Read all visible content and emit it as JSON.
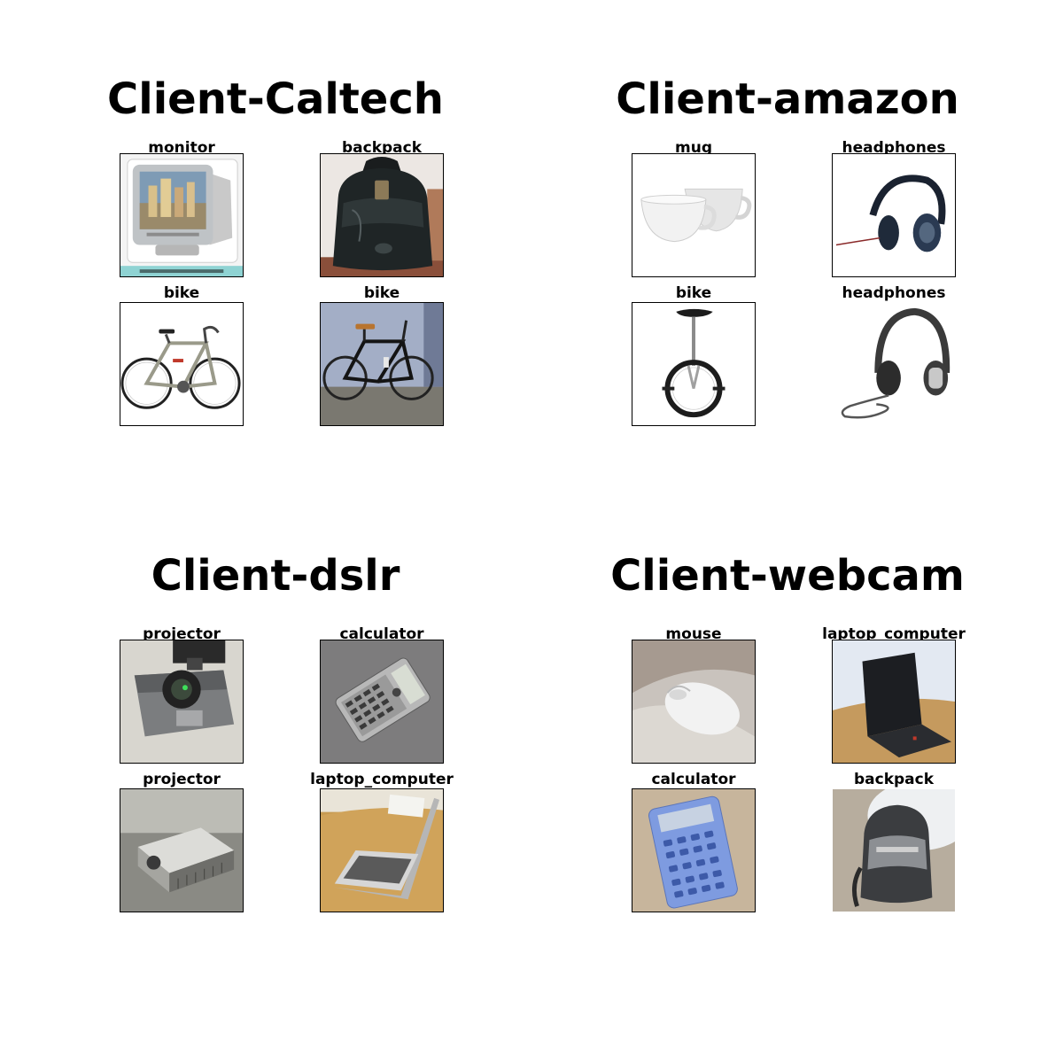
{
  "panels": [
    {
      "title": "Client-Caltech",
      "items": [
        {
          "label": "monitor",
          "icon": "crt-monitor-photo"
        },
        {
          "label": "backpack",
          "icon": "leather-backpack-photo"
        },
        {
          "label": "bike",
          "icon": "road-bike-photo"
        },
        {
          "label": "bike",
          "icon": "racing-bike-photo"
        }
      ]
    },
    {
      "title": "Client-amazon",
      "items": [
        {
          "label": "mug",
          "icon": "white-mugs-photo"
        },
        {
          "label": "headphones",
          "icon": "over-ear-headphones-photo"
        },
        {
          "label": "bike",
          "icon": "unicycle-photo"
        },
        {
          "label": "headphones",
          "icon": "corded-headphones-photo"
        }
      ]
    },
    {
      "title": "Client-dslr",
      "items": [
        {
          "label": "projector",
          "icon": "ceiling-projector-photo"
        },
        {
          "label": "calculator",
          "icon": "scientific-calculator-photo"
        },
        {
          "label": "projector",
          "icon": "table-projector-photo"
        },
        {
          "label": "laptop_computer",
          "icon": "open-laptop-photo"
        }
      ]
    },
    {
      "title": "Client-webcam",
      "items": [
        {
          "label": "mouse",
          "icon": "computer-mouse-photo"
        },
        {
          "label": "laptop_computer",
          "icon": "black-laptop-photo"
        },
        {
          "label": "calculator",
          "icon": "blue-calculator-photo"
        },
        {
          "label": "backpack",
          "icon": "gray-backpack-photo"
        }
      ]
    }
  ]
}
